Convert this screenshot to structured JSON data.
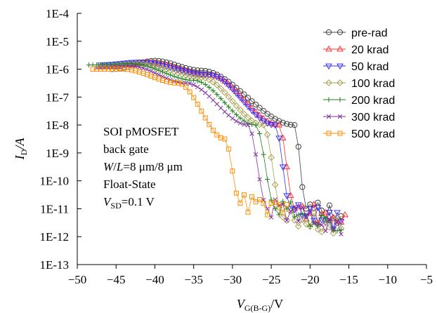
{
  "chart_data": {
    "type": "scatter",
    "title": "",
    "xlabel": {
      "main": "V",
      "sub": "G(B-G)",
      "unit": "/V"
    },
    "ylabel": {
      "main": "I",
      "sub": "D",
      "unit": "/A"
    },
    "xlim": [
      -50,
      -5
    ],
    "ylim_log10": [
      -13,
      -4
    ],
    "y_scale": "log",
    "grid": false,
    "legend_position": "top-right",
    "xticks": [
      -50,
      -45,
      -40,
      -35,
      -30,
      -25,
      -20,
      -15,
      -10,
      -5
    ],
    "xtick_labels": [
      "−50",
      "−45",
      "−40",
      "−35",
      "−30",
      "−25",
      "−20",
      "−15",
      "−10",
      "−5"
    ],
    "yticks_log10": [
      -13,
      -12,
      -11,
      -10,
      -9,
      -8,
      -7,
      -6,
      -5,
      -4
    ],
    "ytick_labels": [
      "1E-13",
      "1E-12",
      "1E-11",
      "1E-10",
      "1E-9",
      "1E-8",
      "1E-7",
      "1E-6",
      "1E-5",
      "1E-4"
    ],
    "annotation": {
      "line1": "SOI pMOSFET",
      "line2": "back gate",
      "line3_a": "W",
      "line3_b": "/",
      "line3_c": "L",
      "line3_d": "=8 μm/8 μm",
      "line4": "Float-State",
      "line5_a": "V",
      "line5_sub": "SD",
      "line5_b": "=0.1 V"
    },
    "series": [
      {
        "name": "pre-rad",
        "marker": "circle",
        "color": "#404040",
        "x_start": -45.5,
        "x_end": -16,
        "plateau_start": -6.0,
        "plateau_x": -44,
        "plateau_peak": -5.7,
        "plateau_peak_x": -40,
        "knee_x": -34,
        "knee_y": -6.05,
        "steep_x1": -22,
        "steep_y1": -8.0,
        "steep_x2": -20.5,
        "steep_y2": -11.0,
        "floor_y": -11.2
      },
      {
        "name": "20 krad",
        "marker": "triangle-up",
        "color": "#ff3030",
        "x_start": -45.5,
        "x_end": -15.5,
        "plateau_start": -5.9,
        "plateau_x": -44,
        "plateau_peak": -5.75,
        "plateau_peak_x": -41,
        "knee_x": -33,
        "knee_y": -6.2,
        "steep_x1": -24,
        "steep_y1": -8.0,
        "steep_x2": -22,
        "steep_y2": -11.0,
        "floor_y": -11.4
      },
      {
        "name": "50 krad",
        "marker": "triangle-down",
        "color": "#3030ff",
        "x_start": -47,
        "x_end": -16,
        "plateau_start": -5.85,
        "plateau_x": -45,
        "plateau_peak": -5.75,
        "plateau_peak_x": -42,
        "knee_x": -33,
        "knee_y": -6.2,
        "steep_x1": -24.5,
        "steep_y1": -8.0,
        "steep_x2": -22.5,
        "steep_y2": -11.0,
        "floor_y": -11.4
      },
      {
        "name": "100 krad",
        "marker": "diamond",
        "color": "#a8a050",
        "x_start": -47,
        "x_end": -16,
        "plateau_start": -5.9,
        "plateau_x": -45,
        "plateau_peak": -5.8,
        "plateau_peak_x": -42,
        "knee_x": -34,
        "knee_y": -6.3,
        "steep_x1": -26,
        "steep_y1": -8.0,
        "steep_x2": -23.5,
        "steep_y2": -11.3,
        "floor_y": -11.6
      },
      {
        "name": "200 krad",
        "marker": "plus",
        "color": "#208020",
        "x_start": -48.5,
        "x_end": -16,
        "plateau_start": -5.85,
        "plateau_x": -46,
        "plateau_peak": -5.8,
        "plateau_peak_x": -43,
        "knee_x": -35,
        "knee_y": -6.4,
        "steep_x1": -27,
        "steep_y1": -8.0,
        "steep_x2": -24.5,
        "steep_y2": -11.0,
        "floor_y": -11.6
      },
      {
        "name": "300 krad",
        "marker": "cross",
        "color": "#8030a0",
        "x_start": -47.5,
        "x_end": -16,
        "plateau_start": -5.95,
        "plateau_x": -45,
        "plateau_peak": -5.9,
        "plateau_peak_x": -43,
        "knee_x": -36,
        "knee_y": -6.5,
        "steep_x1": -28,
        "steep_y1": -8.0,
        "steep_x2": -25.5,
        "steep_y2": -11.0,
        "floor_y": -11.6
      },
      {
        "name": "500 krad",
        "marker": "square",
        "color": "#ff8c00",
        "x_start": -48,
        "x_end": -23,
        "plateau_start": -6.0,
        "plateau_x": -46,
        "plateau_peak": -6.0,
        "plateau_peak_x": -44,
        "knee_x": -37,
        "knee_y": -6.5,
        "steep_x1": -31,
        "steep_y1": -8.5,
        "steep_x2": -29,
        "steep_y2": -10.8,
        "floor_y": -11.1
      }
    ]
  }
}
